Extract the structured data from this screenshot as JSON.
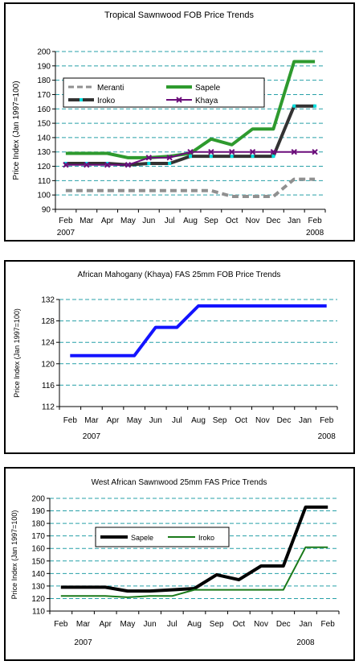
{
  "chart_data": [
    {
      "type": "line",
      "title": "Tropical Sawnwood FOB Price Trends",
      "ylabel": "Price Index (Jan 1997=100)",
      "xlabel": "",
      "categories": [
        "Feb",
        "Mar",
        "Apr",
        "May",
        "Jun",
        "Jul",
        "Aug",
        "Sep",
        "Oct",
        "Nov",
        "Dec",
        "Jan",
        "Feb"
      ],
      "year_labels": [
        {
          "text": "2007",
          "index": 0
        },
        {
          "text": "2008",
          "index": 12
        }
      ],
      "ylim": [
        90,
        200
      ],
      "yticks": [
        90,
        100,
        110,
        120,
        130,
        140,
        150,
        160,
        170,
        180,
        190,
        200
      ],
      "grid": true,
      "legend_position": "upper-left",
      "series": [
        {
          "name": "Meranti",
          "color": "#909090",
          "dash": true,
          "marker": "none",
          "values": [
            103,
            103,
            103,
            103,
            103,
            103,
            103,
            103,
            99,
            99,
            99,
            111,
            111
          ]
        },
        {
          "name": "Sapele",
          "color": "#2e9a2e",
          "dash": false,
          "marker": "none",
          "values": [
            129,
            129,
            129,
            126,
            126,
            127,
            129,
            139,
            135,
            146,
            146,
            193,
            193
          ]
        },
        {
          "name": "Iroko",
          "color": "#333333",
          "dash": false,
          "marker": "cyan",
          "values": [
            122,
            122,
            122,
            121,
            122,
            122,
            127,
            127,
            127,
            127,
            127,
            162,
            162
          ]
        },
        {
          "name": "Khaya",
          "color": "#6b0d7a",
          "dash": false,
          "marker": "x",
          "values": [
            121,
            121,
            121,
            121,
            126,
            126,
            130,
            130,
            130,
            130,
            130,
            130,
            130
          ]
        }
      ]
    },
    {
      "type": "line",
      "title": "African Mahogany (Khaya) FAS 25mm FOB Price Trends",
      "ylabel": "Price Index (Jan 1997=100)",
      "xlabel": "",
      "categories": [
        "Feb",
        "Mar",
        "Apr",
        "May",
        "Jun",
        "Jul",
        "Aug",
        "Sep",
        "Oct",
        "Nov",
        "Dec",
        "Jan",
        "Feb"
      ],
      "year_labels": [
        {
          "text": "2007",
          "index": 1
        },
        {
          "text": "2008",
          "index": 12
        }
      ],
      "ylim": [
        112,
        132
      ],
      "yticks": [
        112,
        116,
        120,
        124,
        128,
        132
      ],
      "grid": true,
      "series": [
        {
          "name": "",
          "color": "#1414ff",
          "dash": false,
          "marker": "none",
          "values": [
            121.5,
            121.5,
            121.5,
            121.5,
            126.8,
            126.8,
            130.8,
            130.8,
            130.8,
            130.8,
            130.8,
            130.8,
            130.8
          ]
        }
      ]
    },
    {
      "type": "line",
      "title": "West African Sawnwood 25mm FAS Price Trends",
      "ylabel": "Price Index (Jan 1997=100)",
      "xlabel": "",
      "categories": [
        "Feb",
        "Mar",
        "Apr",
        "May",
        "Jun",
        "Jul",
        "Aug",
        "Sep",
        "Oct",
        "Nov",
        "Dec",
        "Jan",
        "Feb"
      ],
      "year_labels": [
        {
          "text": "2007",
          "index": 1
        },
        {
          "text": "2008",
          "index": 11
        }
      ],
      "ylim": [
        110,
        200
      ],
      "yticks": [
        110,
        120,
        130,
        140,
        150,
        160,
        170,
        180,
        190,
        200
      ],
      "grid": true,
      "legend_position": "upper-left",
      "series": [
        {
          "name": "Sapele",
          "color": "#000000",
          "dash": false,
          "marker": "none",
          "values": [
            129,
            129,
            129,
            126,
            126,
            127,
            128,
            139,
            135,
            146,
            146,
            193,
            193
          ]
        },
        {
          "name": "Iroko",
          "color": "#1a7a1a",
          "dash": false,
          "marker": "none",
          "values": [
            122,
            122,
            122,
            121,
            122,
            122,
            127,
            127,
            127,
            127,
            127,
            161,
            161
          ]
        }
      ]
    }
  ]
}
